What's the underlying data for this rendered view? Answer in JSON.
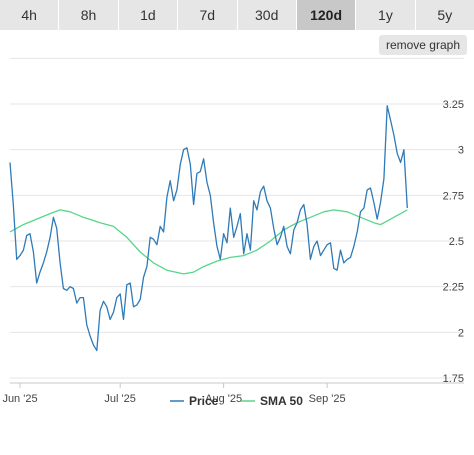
{
  "tabs": [
    {
      "label": "4h",
      "active": false
    },
    {
      "label": "8h",
      "active": false
    },
    {
      "label": "1d",
      "active": false
    },
    {
      "label": "7d",
      "active": false
    },
    {
      "label": "30d",
      "active": false
    },
    {
      "label": "120d",
      "active": true
    },
    {
      "label": "1y",
      "active": false
    },
    {
      "label": "5y",
      "active": false
    }
  ],
  "remove_graph_label": "remove graph",
  "colors": {
    "price": "#2f7ab8",
    "sma": "#56d68a",
    "grid": "#e6e6e6"
  },
  "chart_data": {
    "type": "line",
    "ylim": [
      1.75,
      3.25
    ],
    "y_ticks": [
      {
        "value": 3.25,
        "label": "3.25"
      },
      {
        "value": 3.0,
        "label": "3"
      },
      {
        "value": 2.75,
        "label": "2.75"
      },
      {
        "value": 2.5,
        "label": "2.5"
      },
      {
        "value": 2.25,
        "label": "2.25"
      },
      {
        "value": 2.0,
        "label": "2"
      },
      {
        "value": 1.75,
        "label": "1.75"
      }
    ],
    "x_range": [
      "2025-05-29",
      "2025-10-12"
    ],
    "x_ticks": [
      {
        "date": "2025-06-01",
        "label": "Jun '25"
      },
      {
        "date": "2025-07-01",
        "label": "Jul '25"
      },
      {
        "date": "2025-08-01",
        "label": "Aug '25"
      },
      {
        "date": "2025-09-01",
        "label": "Sep '25"
      }
    ],
    "series": [
      {
        "name": "Price",
        "points": [
          [
            "2025-05-29",
            2.93
          ],
          [
            "2025-05-30",
            2.7
          ],
          [
            "2025-05-31",
            2.4
          ],
          [
            "2025-06-01",
            2.42
          ],
          [
            "2025-06-02",
            2.45
          ],
          [
            "2025-06-03",
            2.53
          ],
          [
            "2025-06-04",
            2.54
          ],
          [
            "2025-06-05",
            2.44
          ],
          [
            "2025-06-06",
            2.27
          ],
          [
            "2025-06-07",
            2.33
          ],
          [
            "2025-06-08",
            2.38
          ],
          [
            "2025-06-09",
            2.44
          ],
          [
            "2025-06-10",
            2.52
          ],
          [
            "2025-06-11",
            2.63
          ],
          [
            "2025-06-12",
            2.57
          ],
          [
            "2025-06-13",
            2.38
          ],
          [
            "2025-06-14",
            2.24
          ],
          [
            "2025-06-15",
            2.23
          ],
          [
            "2025-06-16",
            2.25
          ],
          [
            "2025-06-17",
            2.24
          ],
          [
            "2025-06-18",
            2.16
          ],
          [
            "2025-06-19",
            2.19
          ],
          [
            "2025-06-20",
            2.19
          ],
          [
            "2025-06-21",
            2.04
          ],
          [
            "2025-06-22",
            1.98
          ],
          [
            "2025-06-23",
            1.93
          ],
          [
            "2025-06-24",
            1.9
          ],
          [
            "2025-06-25",
            2.12
          ],
          [
            "2025-06-26",
            2.17
          ],
          [
            "2025-06-27",
            2.14
          ],
          [
            "2025-06-28",
            2.07
          ],
          [
            "2025-06-29",
            2.11
          ],
          [
            "2025-06-30",
            2.19
          ],
          [
            "2025-07-01",
            2.21
          ],
          [
            "2025-07-02",
            2.07
          ],
          [
            "2025-07-03",
            2.26
          ],
          [
            "2025-07-04",
            2.27
          ],
          [
            "2025-07-05",
            2.14
          ],
          [
            "2025-07-06",
            2.15
          ],
          [
            "2025-07-07",
            2.18
          ],
          [
            "2025-07-08",
            2.3
          ],
          [
            "2025-07-09",
            2.36
          ],
          [
            "2025-07-10",
            2.52
          ],
          [
            "2025-07-11",
            2.51
          ],
          [
            "2025-07-12",
            2.48
          ],
          [
            "2025-07-13",
            2.58
          ],
          [
            "2025-07-14",
            2.55
          ],
          [
            "2025-07-15",
            2.74
          ],
          [
            "2025-07-16",
            2.83
          ],
          [
            "2025-07-17",
            2.72
          ],
          [
            "2025-07-18",
            2.78
          ],
          [
            "2025-07-19",
            2.92
          ],
          [
            "2025-07-20",
            3.0
          ],
          [
            "2025-07-21",
            3.01
          ],
          [
            "2025-07-22",
            2.92
          ],
          [
            "2025-07-23",
            2.7
          ],
          [
            "2025-07-24",
            2.87
          ],
          [
            "2025-07-25",
            2.88
          ],
          [
            "2025-07-26",
            2.95
          ],
          [
            "2025-07-27",
            2.82
          ],
          [
            "2025-07-28",
            2.75
          ],
          [
            "2025-07-29",
            2.6
          ],
          [
            "2025-07-30",
            2.47
          ],
          [
            "2025-07-31",
            2.4
          ],
          [
            "2025-08-01",
            2.54
          ],
          [
            "2025-08-02",
            2.49
          ],
          [
            "2025-08-03",
            2.68
          ],
          [
            "2025-08-04",
            2.52
          ],
          [
            "2025-08-05",
            2.58
          ],
          [
            "2025-08-06",
            2.65
          ],
          [
            "2025-08-07",
            2.43
          ],
          [
            "2025-08-08",
            2.54
          ],
          [
            "2025-08-09",
            2.45
          ],
          [
            "2025-08-10",
            2.72
          ],
          [
            "2025-08-11",
            2.67
          ],
          [
            "2025-08-12",
            2.77
          ],
          [
            "2025-08-13",
            2.8
          ],
          [
            "2025-08-14",
            2.72
          ],
          [
            "2025-08-15",
            2.68
          ],
          [
            "2025-08-16",
            2.57
          ],
          [
            "2025-08-17",
            2.48
          ],
          [
            "2025-08-18",
            2.52
          ],
          [
            "2025-08-19",
            2.58
          ],
          [
            "2025-08-20",
            2.47
          ],
          [
            "2025-08-21",
            2.43
          ],
          [
            "2025-08-22",
            2.56
          ],
          [
            "2025-08-23",
            2.6
          ],
          [
            "2025-08-24",
            2.67
          ],
          [
            "2025-08-25",
            2.7
          ],
          [
            "2025-08-26",
            2.59
          ],
          [
            "2025-08-27",
            2.4
          ],
          [
            "2025-08-28",
            2.47
          ],
          [
            "2025-08-29",
            2.5
          ],
          [
            "2025-08-30",
            2.42
          ],
          [
            "2025-08-31",
            2.45
          ],
          [
            "2025-09-01",
            2.48
          ],
          [
            "2025-09-02",
            2.49
          ],
          [
            "2025-09-03",
            2.35
          ],
          [
            "2025-09-04",
            2.34
          ],
          [
            "2025-09-05",
            2.45
          ],
          [
            "2025-09-06",
            2.38
          ],
          [
            "2025-09-07",
            2.4
          ],
          [
            "2025-09-08",
            2.41
          ],
          [
            "2025-09-09",
            2.47
          ],
          [
            "2025-09-10",
            2.55
          ],
          [
            "2025-09-11",
            2.66
          ],
          [
            "2025-09-12",
            2.68
          ],
          [
            "2025-09-13",
            2.78
          ],
          [
            "2025-09-14",
            2.79
          ],
          [
            "2025-09-15",
            2.71
          ],
          [
            "2025-09-16",
            2.62
          ],
          [
            "2025-09-17",
            2.71
          ],
          [
            "2025-09-18",
            2.84
          ],
          [
            "2025-09-19",
            3.24
          ],
          [
            "2025-09-20",
            3.16
          ],
          [
            "2025-09-21",
            3.08
          ],
          [
            "2025-09-22",
            2.98
          ],
          [
            "2025-09-23",
            2.93
          ],
          [
            "2025-09-24",
            3.0
          ],
          [
            "2025-09-25",
            2.68
          ]
        ]
      },
      {
        "name": "SMA 50",
        "points": [
          [
            "2025-05-29",
            2.55
          ],
          [
            "2025-06-02",
            2.59
          ],
          [
            "2025-06-06",
            2.62
          ],
          [
            "2025-06-10",
            2.65
          ],
          [
            "2025-06-13",
            2.67
          ],
          [
            "2025-06-16",
            2.66
          ],
          [
            "2025-06-20",
            2.63
          ],
          [
            "2025-06-25",
            2.6
          ],
          [
            "2025-06-29",
            2.58
          ],
          [
            "2025-07-03",
            2.52
          ],
          [
            "2025-07-07",
            2.44
          ],
          [
            "2025-07-11",
            2.38
          ],
          [
            "2025-07-15",
            2.34
          ],
          [
            "2025-07-20",
            2.32
          ],
          [
            "2025-07-23",
            2.33
          ],
          [
            "2025-07-26",
            2.36
          ],
          [
            "2025-07-30",
            2.39
          ],
          [
            "2025-08-03",
            2.41
          ],
          [
            "2025-08-07",
            2.42
          ],
          [
            "2025-08-11",
            2.45
          ],
          [
            "2025-08-15",
            2.5
          ],
          [
            "2025-08-19",
            2.56
          ],
          [
            "2025-08-23",
            2.6
          ],
          [
            "2025-08-27",
            2.63
          ],
          [
            "2025-08-31",
            2.66
          ],
          [
            "2025-09-03",
            2.67
          ],
          [
            "2025-09-07",
            2.66
          ],
          [
            "2025-09-11",
            2.63
          ],
          [
            "2025-09-15",
            2.6
          ],
          [
            "2025-09-17",
            2.59
          ],
          [
            "2025-09-20",
            2.62
          ],
          [
            "2025-09-25",
            2.67
          ]
        ]
      }
    ],
    "legend": {
      "position": "bottom-center"
    },
    "grid": true
  }
}
